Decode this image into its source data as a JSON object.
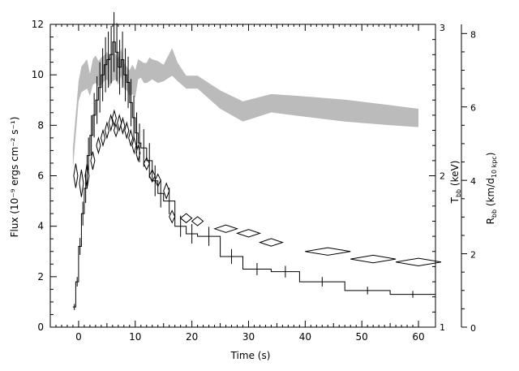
{
  "chart_data": {
    "type": "line",
    "x_axis": {
      "label": "Time (s)",
      "range": [
        -5,
        63
      ],
      "ticks": [
        0,
        10,
        20,
        30,
        40,
        50,
        60
      ],
      "tick_labels": [
        "0",
        "10",
        "20",
        "30",
        "40",
        "50",
        "60"
      ]
    },
    "left_axis": {
      "label": "Flux (10⁻⁹ ergs cm⁻² s⁻¹)",
      "range": [
        0,
        12
      ],
      "ticks": [
        0,
        2,
        4,
        6,
        8,
        10,
        12
      ],
      "tick_labels": [
        "0",
        "2",
        "4",
        "6",
        "8",
        "10",
        "12"
      ]
    },
    "temp_axis": {
      "label": "Tₕₕ (keV)",
      "label_main": "T",
      "label_sub": "bb",
      "label_unit": " (keV)",
      "range": [
        1,
        3
      ],
      "ticks": [
        1,
        2,
        3
      ],
      "tick_labels": [
        "1",
        "2",
        "3"
      ]
    },
    "radius_axis": {
      "label_main": "R",
      "label_sub": "bb",
      "label_unit": " (km/d",
      "label_unit_sub": "10 kpc",
      "label_close": ")",
      "range": [
        0,
        8.25
      ],
      "ticks": [
        0,
        2,
        4,
        6,
        8
      ],
      "tick_labels": [
        "0",
        "2",
        "4",
        "6",
        "8"
      ]
    },
    "series": [
      {
        "style": "step",
        "axis": "left",
        "color": "#000000",
        "edges": [
          -1,
          -0.5,
          0,
          0.5,
          1,
          1.5,
          2,
          2.5,
          3,
          3.5,
          4,
          4.5,
          5,
          5.5,
          6,
          6.5,
          7,
          7.5,
          8,
          8.5,
          9,
          9.5,
          10,
          10.5,
          11,
          12,
          13,
          14,
          15,
          17,
          19,
          21,
          25,
          29,
          34,
          39,
          47,
          55,
          63
        ],
        "values": [
          0.8,
          1.8,
          3.2,
          4.5,
          5.5,
          6.8,
          7.6,
          8.4,
          9.0,
          9.5,
          10.0,
          10.4,
          10.6,
          10.8,
          11.3,
          10.9,
          10.3,
          10.6,
          10.0,
          9.7,
          8.9,
          8.3,
          7.7,
          7.3,
          7.1,
          6.6,
          5.8,
          5.3,
          5.0,
          4.0,
          3.7,
          3.6,
          2.8,
          2.3,
          2.2,
          1.8,
          1.45,
          1.3
        ]
      },
      {
        "style": "diamonds",
        "axis": "temp",
        "color": "#000000",
        "points": [
          {
            "t": -0.5,
            "kT": 2.0,
            "dt": 0.25,
            "dkT": 0.08
          },
          {
            "t": 0.5,
            "kT": 1.95,
            "dt": 0.3,
            "dkT": 0.09
          },
          {
            "t": 1.5,
            "kT": 2.0,
            "dt": 0.3,
            "dkT": 0.08
          },
          {
            "t": 2.5,
            "kT": 2.1,
            "dt": 0.3,
            "dkT": 0.06
          },
          {
            "t": 3.5,
            "kT": 2.2,
            "dt": 0.3,
            "dkT": 0.05
          },
          {
            "t": 4.3,
            "kT": 2.25,
            "dt": 0.25,
            "dkT": 0.05
          },
          {
            "t": 5.0,
            "kT": 2.3,
            "dt": 0.25,
            "dkT": 0.05
          },
          {
            "t": 5.7,
            "kT": 2.35,
            "dt": 0.25,
            "dkT": 0.05
          },
          {
            "t": 6.3,
            "kT": 2.38,
            "dt": 0.25,
            "dkT": 0.05
          },
          {
            "t": 6.6,
            "kT": 2.3,
            "dt": 0.2,
            "dkT": 0.04
          },
          {
            "t": 7.2,
            "kT": 2.35,
            "dt": 0.25,
            "dkT": 0.05
          },
          {
            "t": 7.8,
            "kT": 2.33,
            "dt": 0.25,
            "dkT": 0.05
          },
          {
            "t": 8.5,
            "kT": 2.3,
            "dt": 0.25,
            "dkT": 0.05
          },
          {
            "t": 9.2,
            "kT": 2.25,
            "dt": 0.25,
            "dkT": 0.05
          },
          {
            "t": 9.8,
            "kT": 2.2,
            "dt": 0.25,
            "dkT": 0.05
          },
          {
            "t": 10.5,
            "kT": 2.15,
            "dt": 0.25,
            "dkT": 0.05
          },
          {
            "t": 12.0,
            "kT": 2.08,
            "dt": 0.5,
            "dkT": 0.04
          },
          {
            "t": 13.0,
            "kT": 2.0,
            "dt": 0.5,
            "dkT": 0.04
          },
          {
            "t": 14.0,
            "kT": 1.97,
            "dt": 0.5,
            "dkT": 0.04
          },
          {
            "t": 15.5,
            "kT": 1.9,
            "dt": 0.5,
            "dkT": 0.05
          },
          {
            "t": 16.5,
            "kT": 1.73,
            "dt": 0.5,
            "dkT": 0.04
          },
          {
            "t": 19.0,
            "kT": 1.72,
            "dt": 1.0,
            "dkT": 0.03
          },
          {
            "t": 21.0,
            "kT": 1.7,
            "dt": 1.0,
            "dkT": 0.03
          },
          {
            "t": 26.0,
            "kT": 1.65,
            "dt": 2.0,
            "dkT": 0.025
          },
          {
            "t": 30.0,
            "kT": 1.62,
            "dt": 2.0,
            "dkT": 0.025
          },
          {
            "t": 34.0,
            "kT": 1.56,
            "dt": 2.0,
            "dkT": 0.025
          },
          {
            "t": 44.0,
            "kT": 1.5,
            "dt": 4.0,
            "dkT": 0.025
          },
          {
            "t": 52.0,
            "kT": 1.45,
            "dt": 4.0,
            "dkT": 0.025
          },
          {
            "t": 60.0,
            "kT": 1.43,
            "dt": 4.0,
            "dkT": 0.025
          }
        ]
      },
      {
        "style": "band",
        "axis": "radius",
        "color": "#bbbbbb",
        "t": [
          -1,
          0,
          0.5,
          1,
          1.5,
          2,
          2.5,
          3,
          3.5,
          4,
          4.5,
          5,
          5.5,
          6,
          6.5,
          7,
          7.5,
          8,
          8.5,
          9,
          9.5,
          10,
          10.5,
          11,
          11.5,
          12,
          12.5,
          13,
          14,
          15,
          16.5,
          17.5,
          19,
          21,
          25,
          29,
          34,
          39,
          47,
          55,
          60
        ],
        "upper": [
          4.9,
          6.7,
          7.1,
          7.2,
          7.3,
          6.9,
          7.3,
          7.4,
          7.25,
          7.35,
          7.4,
          7.5,
          7.3,
          7.45,
          7.45,
          7.3,
          7.6,
          7.2,
          7.1,
          7.0,
          7.15,
          7.0,
          7.3,
          7.25,
          7.2,
          7.2,
          7.35,
          7.3,
          7.25,
          7.15,
          7.6,
          7.2,
          6.85,
          6.85,
          6.45,
          6.15,
          6.35,
          6.3,
          6.2,
          6.05,
          5.95
        ],
        "lower": [
          4.3,
          6.15,
          6.4,
          6.45,
          6.5,
          6.3,
          6.6,
          6.65,
          6.55,
          6.6,
          6.7,
          6.75,
          6.55,
          6.7,
          6.75,
          6.6,
          6.85,
          6.5,
          6.45,
          6.3,
          6.35,
          6.25,
          6.75,
          6.8,
          6.65,
          6.65,
          6.7,
          6.75,
          6.65,
          6.7,
          6.85,
          6.7,
          6.5,
          6.5,
          5.95,
          5.6,
          5.85,
          5.75,
          5.6,
          5.5,
          5.45
        ]
      }
    ]
  }
}
